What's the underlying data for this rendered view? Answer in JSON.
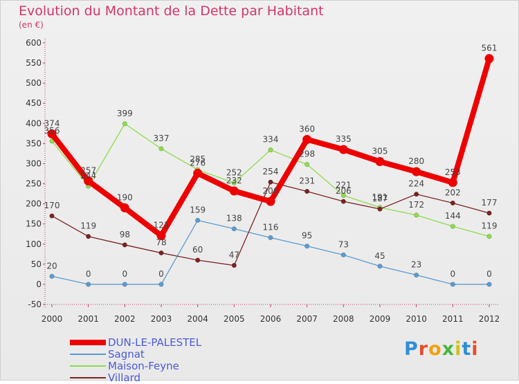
{
  "title": "Evolution du Montant de la Dette par Habitant",
  "unit": "(en €)",
  "logo": {
    "text": "Proxiti",
    "letters": [
      "P",
      "r",
      "o",
      "x",
      "i",
      "t",
      "i"
    ],
    "colors": [
      "#2e8fd6",
      "#e84c2b",
      "#f2a10c",
      "#4ab63f",
      "#d0c21b",
      "#2e8fd6",
      "#e84c2b"
    ]
  },
  "chart_data": {
    "type": "line",
    "title": "Evolution du Montant de la Dette par Habitant",
    "ylabel": "(en €)",
    "xlabel": "",
    "x": [
      "2000",
      "2001",
      "2002",
      "2003",
      "2004",
      "2005",
      "2006",
      "2007",
      "2008",
      "2009",
      "2010",
      "2011",
      "2012"
    ],
    "ylim": [
      -50,
      600
    ],
    "yticks": [
      "-50",
      "0",
      "50",
      "100",
      "150",
      "200",
      "250",
      "300",
      "350",
      "400",
      "450",
      "500",
      "550",
      "600"
    ],
    "grid": false,
    "legend_position": "bottom-left",
    "series": [
      {
        "name": "DUN-LE-PALESTEL",
        "color": "#ee0000",
        "emphasis": true,
        "values": [
          374,
          257,
          190,
          121,
          276,
          232,
          206,
          360,
          335,
          305,
          280,
          253,
          561
        ],
        "labels": [
          "374",
          "257",
          "190",
          "121",
          "276",
          "232",
          "206",
          "360",
          "335",
          "305",
          "280",
          "253",
          "561"
        ]
      },
      {
        "name": "Sagnat",
        "color": "#5b9bd0",
        "values": [
          20,
          0,
          0,
          0,
          159,
          138,
          116,
          95,
          73,
          45,
          23,
          0,
          0
        ],
        "labels": [
          "20",
          "0",
          "0",
          "0",
          "159",
          "138",
          "116",
          "95",
          "73",
          "45",
          "23",
          "0",
          "0"
        ]
      },
      {
        "name": "Maison-Feyne",
        "color": "#8edc4a",
        "values": [
          356,
          244,
          399,
          337,
          285,
          252,
          334,
          298,
          221,
          191,
          172,
          144,
          119
        ],
        "labels": [
          "356",
          "244",
          "399",
          "337",
          "285",
          "252",
          "334",
          "298",
          "221",
          "191",
          "172",
          "144",
          "119"
        ]
      },
      {
        "name": "Villard",
        "color": "#7a2222",
        "values": [
          170,
          119,
          98,
          78,
          60,
          47,
          254,
          231,
          206,
          187,
          224,
          202,
          177
        ],
        "labels": [
          "170",
          "119",
          "98",
          "78",
          "60",
          "47",
          "254",
          "231",
          "206",
          "187",
          "224",
          "202",
          "177"
        ]
      }
    ]
  }
}
